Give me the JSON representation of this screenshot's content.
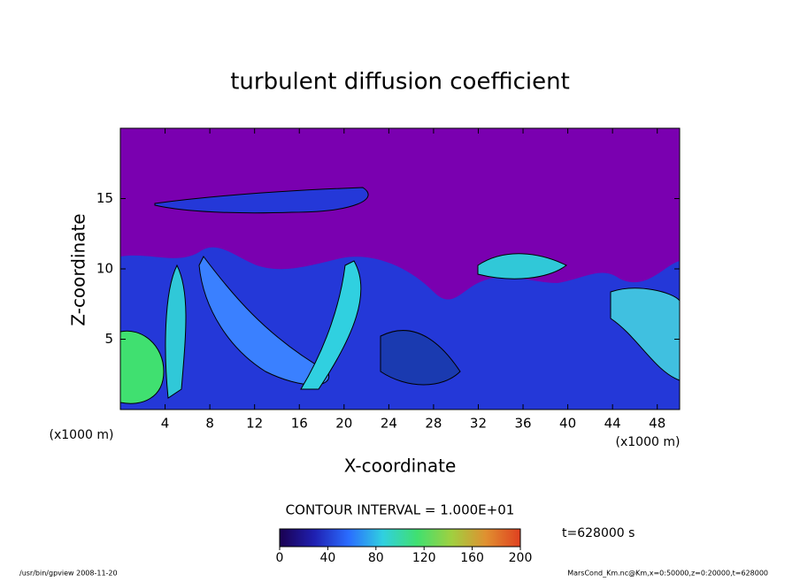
{
  "chart_data": {
    "type": "contour",
    "title": "turbulent diffusion coefficient",
    "x_label": "X-coordinate",
    "y_label": "Z-coordinate",
    "x_unit": "(x1000 m)",
    "y_unit": "(x1000 m)",
    "xlim": [
      0,
      50
    ],
    "xticks": [
      4,
      8,
      12,
      16,
      20,
      24,
      28,
      32,
      36,
      40,
      44,
      48
    ],
    "ylim": [
      0,
      20
    ],
    "yticks": [
      5,
      10,
      15
    ],
    "contour_interval": "CONTOUR INTERVAL = 1.000E+01",
    "time_label": "t=628000 s",
    "colorbar": {
      "lim": [
        0,
        200
      ],
      "ticks": [
        0,
        40,
        80,
        120,
        160,
        200
      ],
      "colors": [
        "#1a0050",
        "#1f1fb0",
        "#2a6cff",
        "#30d0e0",
        "#40e070",
        "#a0d040",
        "#e09030",
        "#e04020"
      ]
    },
    "background_color": "#7a00b0",
    "footer_left": "/usr/bin/gpview  2008-11-20",
    "footer_right": "MarsCond_Km.nc@Km,x=0:50000,z=0:20000,t=628000"
  }
}
